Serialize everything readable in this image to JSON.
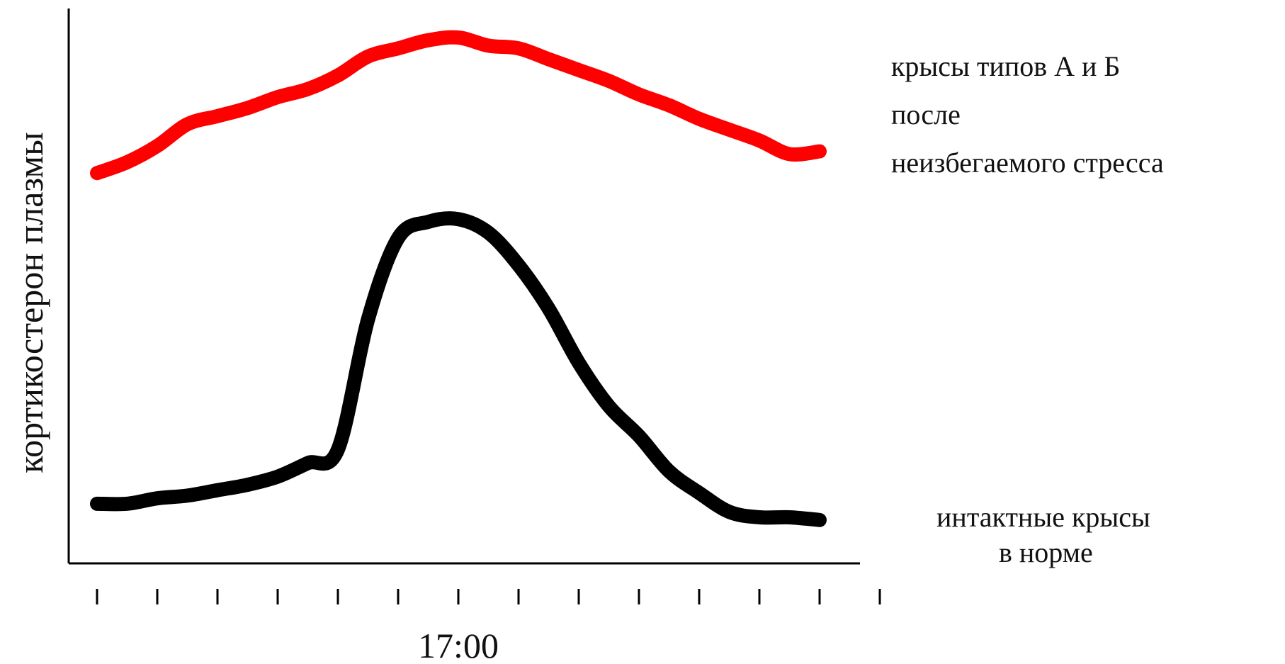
{
  "chart_data": {
    "type": "line",
    "title": "",
    "ylabel": "кортикостерон плазмы",
    "xlabel": "",
    "x_tick_count": 14,
    "x_tick_labels": [
      {
        "tick_index": 6,
        "label": "17:00"
      }
    ],
    "ylim": [
      0,
      100
    ],
    "grid": false,
    "series": [
      {
        "id": "stressed",
        "label_lines": [
          "крысы типов А и Б",
          "после",
          "неизбегаемого стресса"
        ],
        "color": "#ff0000",
        "values": [
          [
            0,
            72
          ],
          [
            0.5,
            74
          ],
          [
            1,
            77
          ],
          [
            1.5,
            81
          ],
          [
            2,
            82.5
          ],
          [
            2.5,
            84
          ],
          [
            3,
            86
          ],
          [
            3.5,
            87.5
          ],
          [
            4,
            90
          ],
          [
            4.5,
            93.5
          ],
          [
            5,
            95
          ],
          [
            5.5,
            96.5
          ],
          [
            6,
            97
          ],
          [
            6.5,
            95.5
          ],
          [
            7,
            95
          ],
          [
            7.5,
            93
          ],
          [
            8,
            91
          ],
          [
            8.5,
            89
          ],
          [
            9,
            86.5
          ],
          [
            9.5,
            84.5
          ],
          [
            10,
            82
          ],
          [
            10.5,
            80
          ],
          [
            11,
            78
          ],
          [
            11.5,
            75.5
          ],
          [
            12,
            76
          ]
        ]
      },
      {
        "id": "intact",
        "label_lines": [
          "интактные крысы",
          "в норме"
        ],
        "color": "#000000",
        "values": [
          [
            0,
            11
          ],
          [
            0.5,
            11
          ],
          [
            1,
            12
          ],
          [
            1.5,
            12.5
          ],
          [
            2,
            13.5
          ],
          [
            2.5,
            14.5
          ],
          [
            3,
            16
          ],
          [
            3.5,
            18.5
          ],
          [
            4,
            21
          ],
          [
            4.5,
            45
          ],
          [
            5,
            60
          ],
          [
            5.5,
            63
          ],
          [
            6,
            63.5
          ],
          [
            6.5,
            61
          ],
          [
            7,
            55
          ],
          [
            7.5,
            47
          ],
          [
            8,
            37
          ],
          [
            8.5,
            29
          ],
          [
            9,
            23.5
          ],
          [
            9.5,
            17
          ],
          [
            10,
            13
          ],
          [
            10.5,
            9.5
          ],
          [
            11,
            8.5
          ],
          [
            11.5,
            8.5
          ],
          [
            12,
            8
          ]
        ]
      }
    ],
    "colors": {
      "axis": "#000000",
      "background": "#ffffff"
    }
  }
}
